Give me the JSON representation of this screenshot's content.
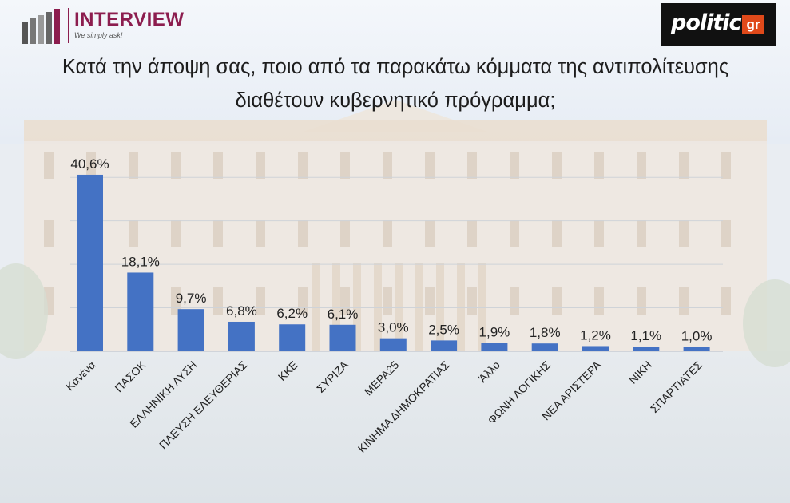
{
  "header": {
    "brand_name": "INTERVIEW",
    "brand_tagline": "We simply ask!",
    "publisher": "politic",
    "publisher_suffix": "gr"
  },
  "chart_data": {
    "type": "bar",
    "title": "Κατά την άποψη σας, ποιο από τα παρακάτω κόμματα της αντιπολίτευσης διαθέτουν κυβερνητικό πρόγραμμα;",
    "categories": [
      "Κανένα",
      "ΠΑΣΟΚ",
      "ΕΛΛΗΝΙΚΗ ΛΥΣΗ",
      "ΠΛΕΥΣΗ ΕΛΕΥΘΕΡΙΑΣ",
      "ΚΚΕ",
      "ΣΥΡΙΖΑ",
      "ΜΕΡΑ25",
      "ΚΙΝΗΜΑ ΔΗΜΟΚΡΑΤΙΑΣ",
      "Άλλο",
      "ΦΩΝΗ ΛΟΓΙΚΗΣ",
      "ΝΕΑ ΑΡΙΣΤΕΡΑ",
      "ΝΙΚΗ",
      "ΣΠΑΡΤΙΑΤΕΣ"
    ],
    "values": [
      40.6,
      18.1,
      9.7,
      6.8,
      6.2,
      6.1,
      3.0,
      2.5,
      1.9,
      1.8,
      1.2,
      1.1,
      1.0
    ],
    "value_labels": [
      "40,6%",
      "18,1%",
      "9,7%",
      "6,8%",
      "6,2%",
      "6,1%",
      "3,0%",
      "2,5%",
      "1,9%",
      "1,8%",
      "1,2%",
      "1,1%",
      "1,0%"
    ],
    "ylim": [
      0,
      45
    ],
    "grid": true,
    "bar_color": "#4472c4",
    "label_color": "#222222"
  }
}
